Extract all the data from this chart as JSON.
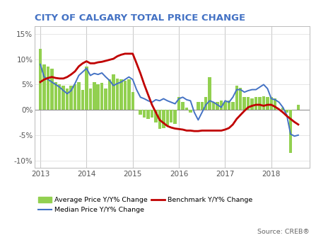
{
  "title": "CITY OF CALGARY TOTAL PRICE CHANGE",
  "title_color": "#4472C4",
  "title_fontsize": 9.5,
  "ylabel_ticks": [
    "-10%",
    "-5%",
    "0%",
    "5%",
    "10%",
    "15%"
  ],
  "yticks": [
    -0.1,
    -0.05,
    0.0,
    0.05,
    0.1,
    0.15
  ],
  "ylim": [
    -0.115,
    0.165
  ],
  "xlim_start": 2012.88,
  "xlim_end": 2018.83,
  "source_text": "Source: CREB®",
  "bar_color": "#92D050",
  "line_median_color": "#4472C4",
  "line_benchmark_color": "#C00000",
  "legend_labels": [
    "Average Price Y/Y% Change",
    "Median Price Y/Y% Change",
    "Benchmark Y/Y% Change"
  ],
  "months": [
    2013.0,
    2013.083,
    2013.167,
    2013.25,
    2013.333,
    2013.417,
    2013.5,
    2013.583,
    2013.667,
    2013.75,
    2013.833,
    2013.917,
    2014.0,
    2014.083,
    2014.167,
    2014.25,
    2014.333,
    2014.417,
    2014.5,
    2014.583,
    2014.667,
    2014.75,
    2014.833,
    2014.917,
    2015.0,
    2015.083,
    2015.167,
    2015.25,
    2015.333,
    2015.417,
    2015.5,
    2015.583,
    2015.667,
    2015.75,
    2015.833,
    2015.917,
    2016.0,
    2016.083,
    2016.167,
    2016.25,
    2016.333,
    2016.417,
    2016.5,
    2016.583,
    2016.667,
    2016.75,
    2016.833,
    2016.917,
    2017.0,
    2017.083,
    2017.167,
    2017.25,
    2017.333,
    2017.417,
    2017.5,
    2017.583,
    2017.667,
    2017.75,
    2017.833,
    2017.917,
    2018.0,
    2018.083,
    2018.167,
    2018.25,
    2018.333,
    2018.417,
    2018.5,
    2018.583
  ],
  "avg_price": [
    0.12,
    0.09,
    0.086,
    0.082,
    0.055,
    0.05,
    0.048,
    0.042,
    0.048,
    0.05,
    0.055,
    0.04,
    0.085,
    0.042,
    0.055,
    0.05,
    0.054,
    0.042,
    0.06,
    0.07,
    0.062,
    0.06,
    0.058,
    0.06,
    0.035,
    0.0,
    -0.01,
    -0.015,
    -0.018,
    -0.015,
    -0.025,
    -0.038,
    -0.036,
    -0.03,
    -0.025,
    -0.028,
    0.025,
    0.015,
    0.005,
    -0.005,
    0.0,
    0.015,
    0.016,
    0.025,
    0.065,
    0.016,
    0.015,
    0.018,
    0.015,
    0.018,
    0.015,
    0.048,
    0.043,
    0.025,
    0.025,
    0.022,
    0.025,
    0.025,
    0.027,
    0.025,
    0.026,
    0.022,
    0.0,
    0.005,
    -0.005,
    -0.085,
    0.0,
    0.01
  ],
  "median_price": [
    0.09,
    0.065,
    0.06,
    0.055,
    0.05,
    0.045,
    0.038,
    0.032,
    0.038,
    0.052,
    0.068,
    0.075,
    0.082,
    0.068,
    0.072,
    0.07,
    0.073,
    0.065,
    0.058,
    0.048,
    0.052,
    0.055,
    0.06,
    0.065,
    0.06,
    0.04,
    0.025,
    0.022,
    0.018,
    0.015,
    0.02,
    0.018,
    0.022,
    0.018,
    0.015,
    0.012,
    0.022,
    0.025,
    0.02,
    0.018,
    -0.005,
    -0.02,
    -0.005,
    0.01,
    0.018,
    0.015,
    0.01,
    0.005,
    0.018,
    0.015,
    0.025,
    0.04,
    0.04,
    0.035,
    0.038,
    0.04,
    0.04,
    0.045,
    0.05,
    0.042,
    0.022,
    0.02,
    0.015,
    0.005,
    -0.01,
    -0.048,
    -0.052,
    -0.05
  ],
  "benchmark": [
    0.055,
    0.06,
    0.063,
    0.065,
    0.063,
    0.062,
    0.062,
    0.065,
    0.07,
    0.076,
    0.086,
    0.092,
    0.096,
    0.092,
    0.092,
    0.094,
    0.095,
    0.097,
    0.099,
    0.101,
    0.106,
    0.109,
    0.111,
    0.111,
    0.111,
    0.092,
    0.072,
    0.05,
    0.03,
    0.01,
    -0.005,
    -0.02,
    -0.026,
    -0.032,
    -0.035,
    -0.037,
    -0.038,
    -0.039,
    -0.041,
    -0.041,
    -0.042,
    -0.042,
    -0.041,
    -0.041,
    -0.041,
    -0.041,
    -0.041,
    -0.041,
    -0.039,
    -0.036,
    -0.029,
    -0.018,
    -0.01,
    -0.002,
    0.005,
    0.008,
    0.01,
    0.01,
    0.008,
    0.01,
    0.01,
    0.006,
    0.001,
    -0.005,
    -0.012,
    -0.018,
    -0.024,
    -0.029
  ]
}
